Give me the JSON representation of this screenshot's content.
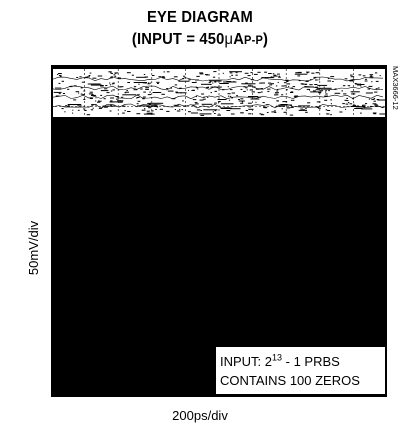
{
  "chart_data": {
    "type": "scatter",
    "title": "EYE DIAGRAM",
    "subtitle_prefix": "(INPUT = 450",
    "subtitle_unit_greek": "μ",
    "subtitle_unit_a": "A",
    "subtitle_unit_pp": "P-P",
    "subtitle_suffix": ")",
    "xlabel": "200ps/div",
    "ylabel": "50mV/div",
    "figure_id": "MAX3666-12",
    "annotation_line1_prefix": "INPUT:  2",
    "annotation_exponent": "13",
    "annotation_line1_suffix": " - 1 PRBS",
    "annotation_line2": "CONTAINS 100 ZEROS",
    "grid": true,
    "x_divisions": 10,
    "y_divisions": 8,
    "background_color": "#000000",
    "trace_color": "#ffffff"
  }
}
